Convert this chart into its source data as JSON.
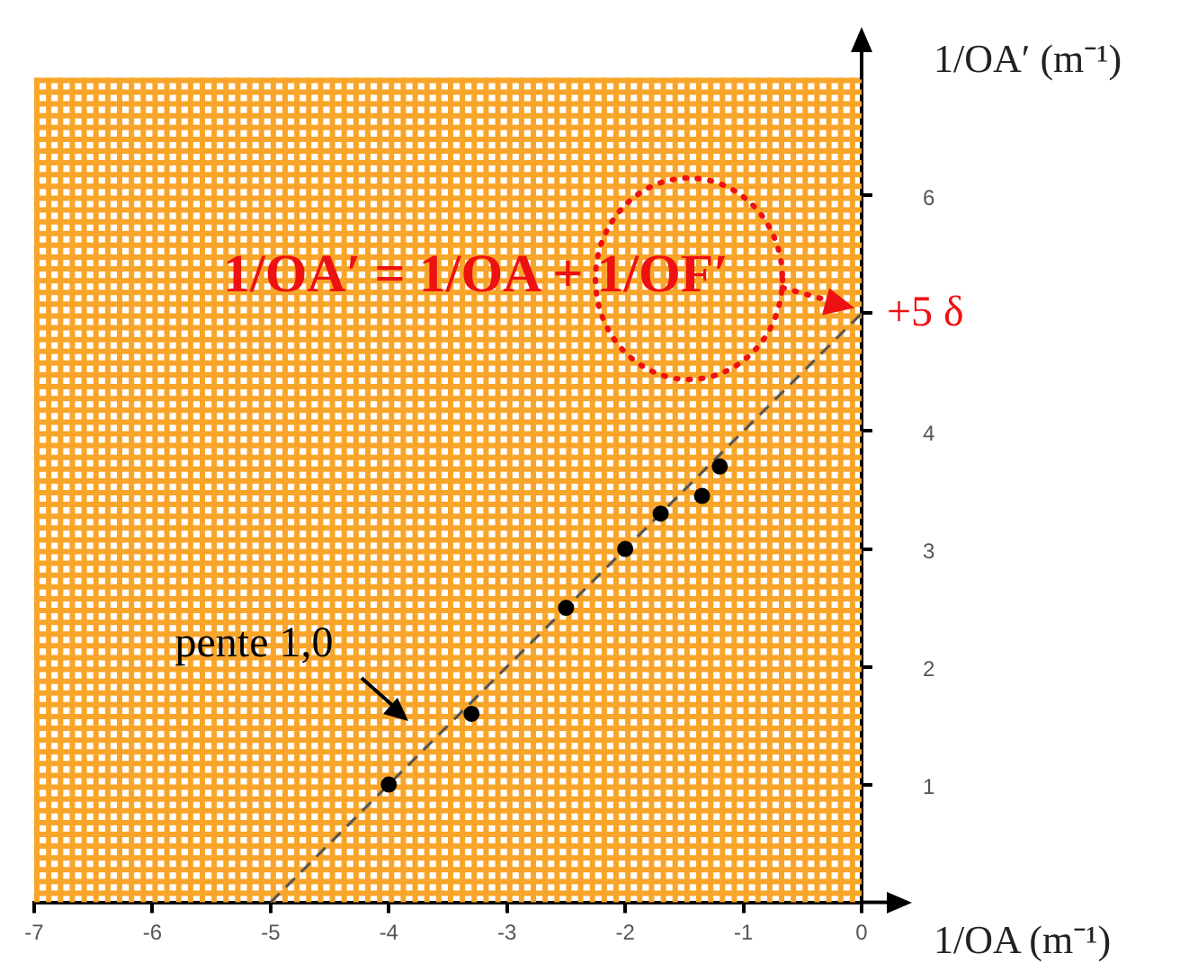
{
  "chart_data": {
    "type": "scatter",
    "xlabel": "1/OA (m⁻¹)",
    "ylabel": "1/OA′ (m⁻¹)",
    "x": [
      -4,
      -3.3,
      -2.5,
      -2,
      -1.7,
      -1.35,
      -1.2
    ],
    "series": [
      {
        "color": "#000000",
        "marker": "circle",
        "values": [
          1,
          1.6,
          2.5,
          3,
          3.3,
          3.45,
          3.7
        ]
      },
      {
        "type": "line",
        "color": "#555555",
        "line_style": "dashed",
        "marker": "none",
        "x": [
          -5,
          0
        ],
        "values": [
          0,
          5
        ]
      }
    ],
    "xlim": [
      -7,
      0
    ],
    "xticks": [
      -7,
      -6,
      -5,
      -4,
      -3,
      -2,
      -1,
      0
    ],
    "ylim": [
      0,
      7
    ],
    "yticks": [
      1,
      2,
      3,
      4,
      {
        "value": 5,
        "label": null
      },
      6
    ],
    "grid": true,
    "annotations": [
      "1/OA′ = 1/OA + 1/OF′",
      {
        "text": "+5 δ",
        "x": 0,
        "y": 5
      },
      {
        "text": "pente 1,0",
        "x": -3.8,
        "y": 1.2
      }
    ]
  }
}
